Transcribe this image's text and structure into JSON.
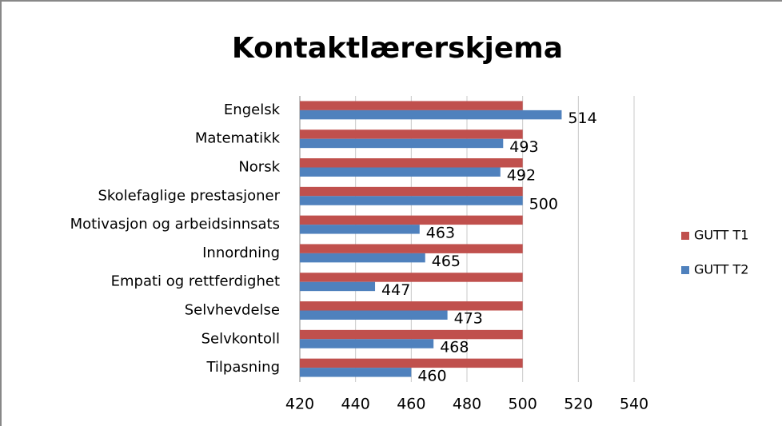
{
  "chart_data": {
    "type": "bar",
    "orientation": "horizontal",
    "title": "Kontaktlærerskjema",
    "categories": [
      "Engelsk",
      "Matematikk",
      "Norsk",
      "Skolefaglige prestasjoner",
      "Motivasjon og arbeidsinnsats",
      "Innordning",
      "Empati og rettferdighet",
      "Selvhevdelse",
      "Selvkontoll",
      "Tilpasning"
    ],
    "series": [
      {
        "name": "GUTT T1",
        "color": "#c0504d",
        "values": [
          500,
          500,
          500,
          500,
          500,
          500,
          500,
          500,
          500,
          500
        ],
        "data_labels": false
      },
      {
        "name": "GUTT T2",
        "color": "#4f81bd",
        "values": [
          514,
          493,
          492,
          500,
          463,
          465,
          447,
          473,
          468,
          460
        ],
        "data_labels": true
      }
    ],
    "xlim": [
      420,
      540
    ],
    "xticks": [
      420,
      440,
      460,
      480,
      500,
      520,
      540
    ],
    "grid": true,
    "legend": "right"
  }
}
